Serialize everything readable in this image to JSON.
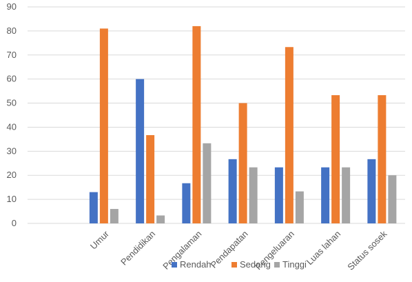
{
  "chart_data": {
    "type": "bar",
    "title": "",
    "xlabel": "",
    "ylabel": "",
    "ylim": [
      0,
      90
    ],
    "yticks": [
      0,
      10,
      20,
      30,
      40,
      50,
      60,
      70,
      80,
      90
    ],
    "grid": "horizontal",
    "legend_position": "bottom",
    "categories": [
      "",
      "Umur",
      "Pendidikan",
      "Pengalaman",
      "Pendapatan",
      "Pengeluaran",
      "Luas lahan",
      "Status sosek"
    ],
    "series": [
      {
        "name": "Rendah",
        "color": "#4472C4",
        "values": [
          null,
          13.0,
          60.0,
          16.7,
          26.7,
          23.3,
          23.3,
          26.7
        ]
      },
      {
        "name": "Sedang",
        "color": "#ED7D31",
        "values": [
          null,
          81.0,
          36.7,
          82.0,
          50.0,
          73.3,
          53.3,
          53.3
        ]
      },
      {
        "name": "Tinggi",
        "color": "#A5A5A5",
        "values": [
          null,
          6.0,
          3.3,
          33.3,
          23.3,
          13.3,
          23.3,
          20.0
        ]
      }
    ]
  }
}
